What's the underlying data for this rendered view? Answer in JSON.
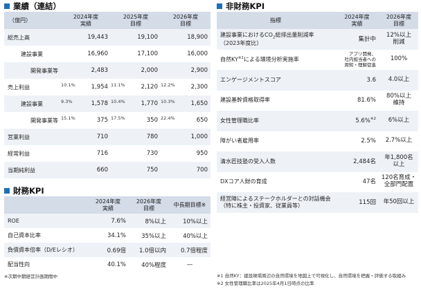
{
  "results": {
    "title": "業績（連結）",
    "unit": "（億円）",
    "columns": [
      "2024年度\n実績",
      "2025年度\n目標",
      "2026年度\n目標"
    ],
    "rows": [
      {
        "label": "総売上高",
        "level": 0,
        "c1": "19,443",
        "c2": "19,100",
        "c3": "18,900"
      },
      {
        "label": "建設事業",
        "level": 1,
        "c1": "16,960",
        "c2": "17,100",
        "c3": "16,000"
      },
      {
        "label": "開発事業等",
        "level": 2,
        "c1": "2,483",
        "c2": "2,000",
        "c3": "2,900"
      },
      {
        "label": "売上利益",
        "level": 0,
        "p1": "10.1%",
        "c1": "1,954",
        "p2": "11.1%",
        "c2": "2,120",
        "p3": "12.2%",
        "c3": "2,300"
      },
      {
        "label": "建設事業",
        "level": 1,
        "p1": "9.3%",
        "c1": "1,578",
        "p2": "10.4%",
        "c2": "1,770",
        "p3": "10.3%",
        "c3": "1,650"
      },
      {
        "label": "開発事業等",
        "level": 2,
        "p1": "15.1%",
        "c1": "375",
        "p2": "17.5%",
        "c2": "350",
        "p3": "22.4%",
        "c3": "650"
      },
      {
        "label": "営業利益",
        "level": 0,
        "c1": "710",
        "c2": "780",
        "c3": "1,000"
      },
      {
        "label": "経常利益",
        "level": 0,
        "c1": "716",
        "c2": "730",
        "c3": "950"
      },
      {
        "label": "当期純利益",
        "level": 0,
        "c1": "660",
        "c2": "750",
        "c3": "700"
      }
    ]
  },
  "financial_kpi": {
    "title": "財務KPI",
    "columns": [
      "2024年度\n実績",
      "2026年度\n目標",
      "中長期目標※"
    ],
    "rows": [
      {
        "label": "ROE",
        "c1": "7.6%",
        "c2": "8%以上",
        "c3": "10%以上"
      },
      {
        "label": "自己資本比率",
        "c1": "34.1%",
        "c2": "35%以上",
        "c3": "40%以上"
      },
      {
        "label": "負債資本倍率（D/Eレシオ）",
        "c1": "0.69倍",
        "c2": "1.0倍以内",
        "c3": "0.7倍程度"
      },
      {
        "label": "配当性向",
        "c1": "40.1%",
        "c2": "40%程度",
        "c3": "—"
      }
    ],
    "note": "※次期中期経営計画期間中"
  },
  "nonfinancial_kpi": {
    "title": "非財務KPI",
    "columns": [
      "指標",
      "2024年度\n実績",
      "2026年度\n目標"
    ],
    "rows": [
      {
        "label_a": "建設事業におけるCO",
        "label_sub": "2",
        "label_b": "総排出量削減率",
        "label_line2": "（2023年度比）",
        "actual": "集計中",
        "actual_small": false,
        "target": "12%以上\n削減"
      },
      {
        "label_a": "自然KY",
        "label_sup": "※1",
        "label_b": "による環境分析実施率",
        "label_line2": "",
        "actual": "アプリ開発、\n社内担当者への\n周知・理解促進",
        "actual_small": true,
        "target": "100%"
      },
      {
        "label_a": "エンゲージメントスコア",
        "label_line2": "",
        "actual": "3.6",
        "actual_small": false,
        "target": "4.0以上"
      },
      {
        "label_a": "建設基幹資格取得率",
        "label_line2": "",
        "actual": "81.6%",
        "actual_small": false,
        "target": "80%以上\n維持"
      },
      {
        "label_a": "女性管理職比率",
        "label_line2": "",
        "actual": "5.6%",
        "actual_sup": "※2",
        "actual_small": false,
        "target": "6%以上"
      },
      {
        "label_a": "障がい者雇用率",
        "label_line2": "",
        "actual": "2.5%",
        "actual_small": false,
        "target": "2.7%以上"
      },
      {
        "label_a": "清水匠技塾の受入人数",
        "label_line2": "",
        "actual": "2,484名",
        "actual_small": false,
        "target": "年1,800名\n以上"
      },
      {
        "label_a": "DXコア人財の育成",
        "label_line2": "",
        "actual": "47名",
        "actual_small": false,
        "target": "120名育成・\n全部門配置"
      },
      {
        "label_a": "経営陣によるステークホルダーとの対話機会",
        "label_line2": "（特に株主・投資家、従業員等）",
        "actual": "115回",
        "actual_small": false,
        "target": "年50回以上"
      }
    ],
    "notes": [
      "※1 自然KY：建設現場周辺の自然環境を地図上で可視化し、自然環境を把握・評価する取組み",
      "※2 女性管理職比率は2025年4月1日時点の比率"
    ]
  },
  "colors": {
    "accent": "#1f6fb5",
    "header_bg": "#d4dce8",
    "stripe": "#eef2f7"
  }
}
